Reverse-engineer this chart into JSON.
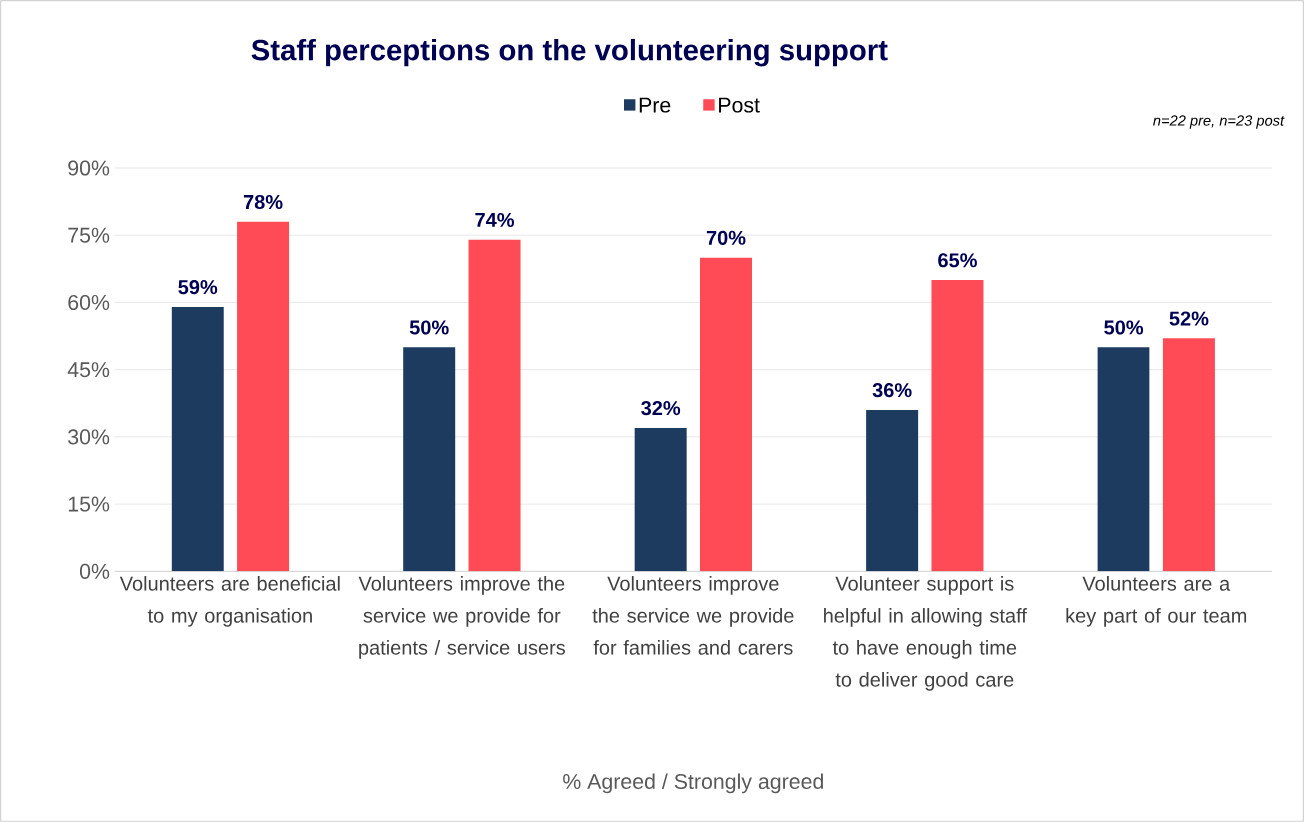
{
  "chart_data": {
    "type": "bar",
    "title": "Staff perceptions on the volunteering support",
    "xlabel": "% Agreed / Strongly agreed",
    "annotations": [
      "*n=22 pre, n=23 post*"
    ],
    "categories": [
      "Volunteers are beneficial to my organisation",
      "Volunteers improve the service we provide for patients / service users",
      "Volunteers improve the service we provide for families and carers",
      "Volunteer support is helpful in allowing staff to have enough time to deliver good care",
      "Volunteers are a key part of our team"
    ],
    "series": [
      {
        "name": "Pre",
        "color": "#1d3a5f",
        "values": [
          59,
          50,
          32,
          36,
          50
        ],
        "value_labels": [
          "59%",
          "50%",
          "32%",
          "36%",
          "50%"
        ]
      },
      {
        "name": "Post",
        "color": "#ff4b55",
        "values": [
          78,
          74,
          70,
          65,
          52
        ],
        "value_labels": [
          "78%",
          "74%",
          "70%",
          "65%",
          "52%"
        ]
      }
    ],
    "ylim": [
      0,
      90
    ],
    "yticks": [
      {
        "value": 0,
        "label": "0%"
      },
      {
        "value": 15,
        "label": "15%"
      },
      {
        "value": 30,
        "label": "30%"
      },
      {
        "value": 45,
        "label": "45%"
      },
      {
        "value": 60,
        "label": "60%"
      },
      {
        "value": 75,
        "label": "75%"
      },
      {
        "value": 90,
        "label": "90%"
      }
    ],
    "grid": "y",
    "legend": "top"
  }
}
